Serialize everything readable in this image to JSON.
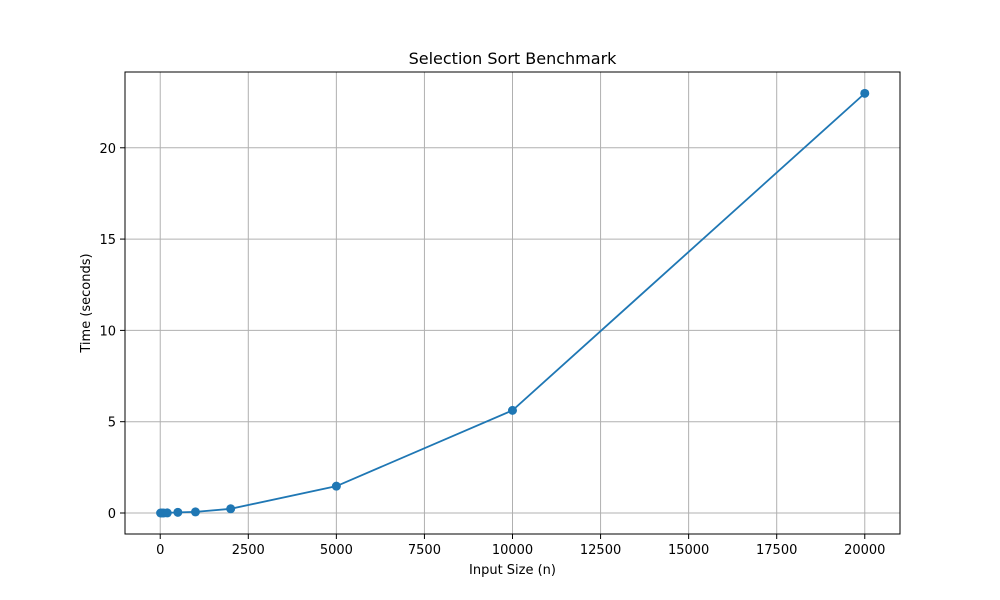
{
  "chart_data": {
    "type": "line",
    "title": "Selection Sort Benchmark",
    "xlabel": "Input Size (n)",
    "ylabel": "Time (seconds)",
    "xlim": [
      -1000,
      21000
    ],
    "ylim": [
      -1.15,
      24.15
    ],
    "xticks": [
      0,
      2500,
      5000,
      7500,
      10000,
      12500,
      15000,
      17500,
      20000
    ],
    "yticks": [
      0,
      5,
      10,
      15,
      20
    ],
    "grid": true,
    "series": [
      {
        "color": "#1f77b4",
        "marker": "circle",
        "x": [
          10,
          50,
          100,
          200,
          500,
          1000,
          2000,
          5000,
          10000,
          20000
        ],
        "y": [
          0.0,
          0.0005,
          0.002,
          0.006,
          0.035,
          0.06,
          0.23,
          1.47,
          5.62,
          22.98
        ]
      }
    ]
  }
}
